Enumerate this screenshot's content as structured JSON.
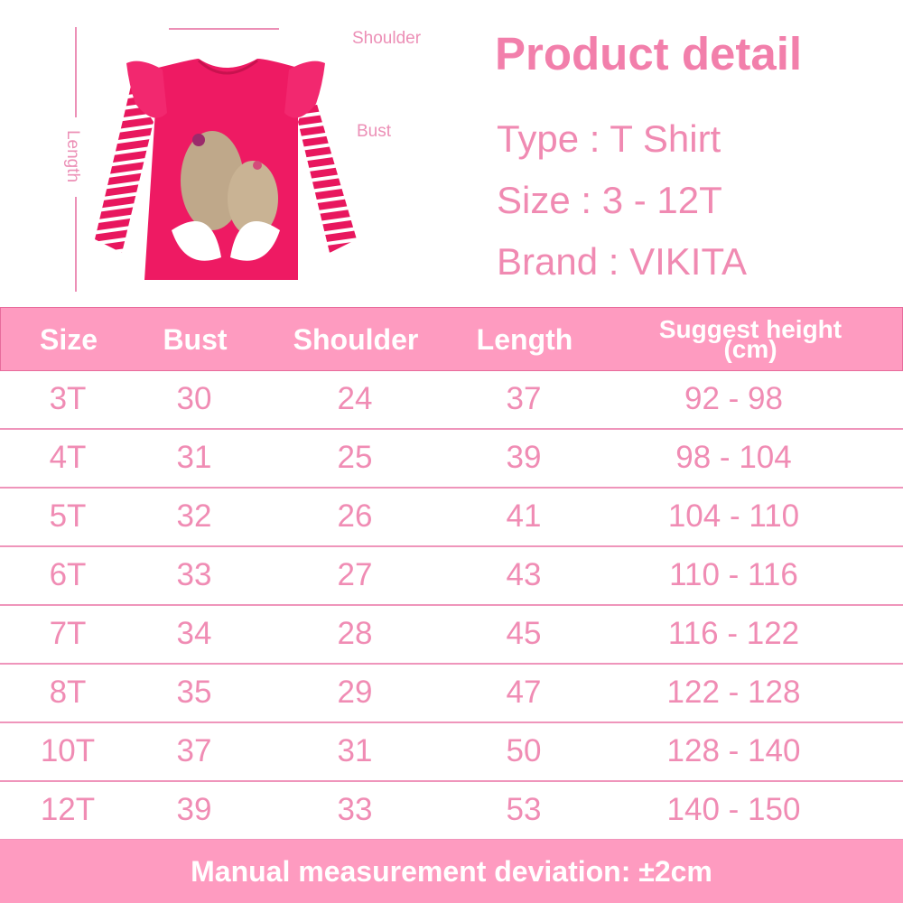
{
  "measure_labels": {
    "shoulder": "Shoulder",
    "bust": "Bust",
    "length": "Length"
  },
  "product": {
    "title": "Product detail",
    "type": "Type : T Shirt",
    "size": "Size : 3 - 12T",
    "brand": "Brand : VIKITA"
  },
  "table": {
    "headers": [
      "Size",
      "Bust",
      "Shoulder",
      "Length",
      "Suggest height",
      "(cm)"
    ],
    "rows": [
      [
        "3T",
        "30",
        "24",
        "37",
        "92 - 98"
      ],
      [
        "4T",
        "31",
        "25",
        "39",
        "98 - 104"
      ],
      [
        "5T",
        "32",
        "26",
        "41",
        "104 - 110"
      ],
      [
        "6T",
        "33",
        "27",
        "43",
        "110 - 116"
      ],
      [
        "7T",
        "34",
        "28",
        "45",
        "116 - 122"
      ],
      [
        "8T",
        "35",
        "29",
        "47",
        "122 - 128"
      ],
      [
        "10T",
        "37",
        "31",
        "50",
        "128 - 140"
      ],
      [
        "12T",
        "39",
        "33",
        "53",
        "140 - 150"
      ]
    ]
  },
  "footer": "Manual measurement deviation: ±2cm",
  "colors": {
    "accent": "#fe9bc0",
    "text_pink": "#f08cb4",
    "shirt": "#ee1a63"
  }
}
